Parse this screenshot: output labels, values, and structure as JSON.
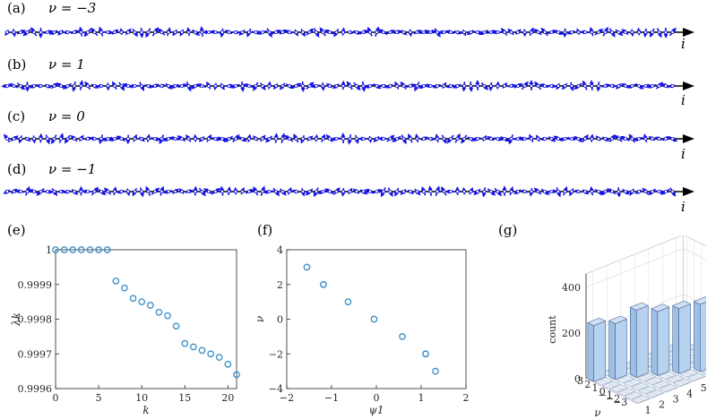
{
  "colors": {
    "arrow": "#1414e6",
    "axis": "#000000",
    "marker": "#3a8fc9",
    "bar_fill": "#b7d2ef",
    "bar_edge": "#2a4a7a",
    "grid": "#e2e2e2"
  },
  "rows": [
    {
      "label": "(a)",
      "nu": "ν = −3",
      "axis_label": "i"
    },
    {
      "label": "(b)",
      "nu": "ν = 1",
      "axis_label": "i"
    },
    {
      "label": "(c)",
      "nu": "ν = 0",
      "axis_label": "i"
    },
    {
      "label": "(d)",
      "nu": "ν = −1",
      "axis_label": "i"
    }
  ],
  "chart_data": [
    {
      "panel": "(e)",
      "type": "scatter",
      "xlabel": "k",
      "ylabel": "λk",
      "xlim": [
        0,
        21
      ],
      "ylim": [
        0.9996,
        1.0
      ],
      "xticks": [
        "0",
        "5",
        "10",
        "15",
        "20"
      ],
      "yticks": [
        "0.9996",
        "0.9997",
        "0.9998",
        "0.9999",
        "1"
      ],
      "x": [
        0,
        1,
        2,
        3,
        4,
        5,
        6,
        7,
        8,
        9,
        10,
        11,
        12,
        13,
        14,
        15,
        16,
        17,
        18,
        19,
        20,
        21
      ],
      "y": [
        1.0,
        1.0,
        1.0,
        1.0,
        1.0,
        1.0,
        1.0,
        0.99991,
        0.99989,
        0.99986,
        0.99985,
        0.99984,
        0.99982,
        0.99981,
        0.99978,
        0.99973,
        0.99972,
        0.99971,
        0.9997,
        0.99969,
        0.99967,
        0.99964
      ]
    },
    {
      "panel": "(f)",
      "type": "scatter",
      "xlabel": "ψ1",
      "ylabel": "ν",
      "xlim": [
        -2,
        2
      ],
      "ylim": [
        -4,
        4
      ],
      "xticks": [
        "−2",
        "−1",
        "0",
        "1",
        "2"
      ],
      "yticks": [
        "−4",
        "−2",
        "0",
        "2",
        "4"
      ],
      "x": [
        -1.55,
        -1.18,
        -1.18,
        -0.63,
        -0.05,
        0.58,
        1.1,
        1.1,
        1.32
      ],
      "y": [
        3,
        2,
        2,
        1,
        0,
        -1,
        -2,
        -2,
        -3
      ]
    },
    {
      "panel": "(g)",
      "type": "bar3d",
      "xlabel": "kmean",
      "ylabel": "ν",
      "zlabel": "count",
      "xticks": [
        "1",
        "2",
        "3",
        "4",
        "5",
        "6",
        "7"
      ],
      "yticks": [
        "3",
        "2",
        "1",
        "0",
        "−1",
        "−2",
        "−3"
      ],
      "zticks": [
        "0",
        "200",
        "400"
      ],
      "zlim": [
        0,
        400
      ],
      "values": [
        245,
        245,
        295,
        280,
        285,
        295,
        250
      ]
    }
  ]
}
